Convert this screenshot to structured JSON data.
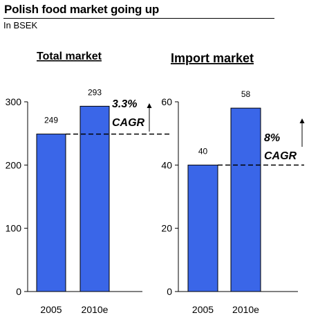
{
  "header": {
    "title": "Polish food market going up",
    "subtitle": "In BSEK"
  },
  "colors": {
    "bar": "#3a66e8",
    "axis": "#000000"
  },
  "chart_data": [
    {
      "type": "bar",
      "title": "Total market",
      "categories": [
        "2005",
        "2010e"
      ],
      "values": [
        249,
        293
      ],
      "value_labels": [
        "249",
        "293"
      ],
      "ylim": [
        0,
        300
      ],
      "yticks": [
        0,
        100,
        200,
        300
      ],
      "annotation": {
        "line1": "3.3%",
        "line2": "CAGR"
      },
      "reference_line": 249
    },
    {
      "type": "bar",
      "title": "Import market",
      "categories": [
        "2005",
        "2010e"
      ],
      "values": [
        40,
        58
      ],
      "value_labels": [
        "40",
        "58"
      ],
      "ylim": [
        0,
        60
      ],
      "yticks": [
        0,
        20,
        40,
        60
      ],
      "annotation": {
        "line1": "8%",
        "line2": "CAGR"
      },
      "reference_line": 40
    }
  ]
}
